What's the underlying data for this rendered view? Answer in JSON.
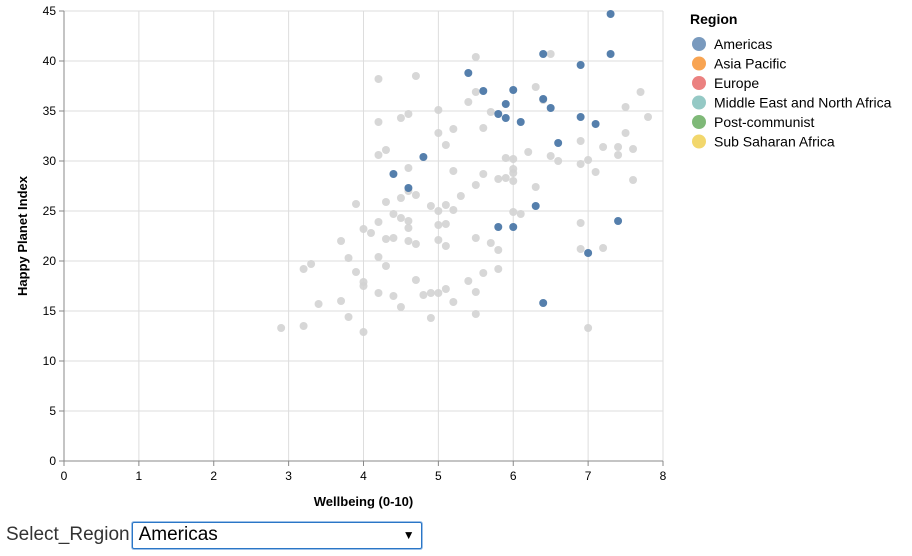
{
  "chart_data": {
    "type": "scatter",
    "title": "",
    "xlabel": "Wellbeing (0-10)",
    "ylabel": "Happy Planet Index",
    "xlim": [
      0,
      8
    ],
    "ylim": [
      0,
      45
    ],
    "xticks": [
      0,
      1,
      2,
      3,
      4,
      5,
      6,
      7,
      8
    ],
    "yticks": [
      0,
      5,
      10,
      15,
      20,
      25,
      30,
      35,
      40,
      45
    ],
    "grid": true,
    "legend_position": "right",
    "legend": {
      "title": "Region",
      "entries": [
        {
          "label": "Americas",
          "color": "#4c78a8"
        },
        {
          "label": "Asia Pacific",
          "color": "#f58518"
        },
        {
          "label": "Europe",
          "color": "#e45756"
        },
        {
          "label": "Middle East and North Africa",
          "color": "#72b7b2"
        },
        {
          "label": "Post-communist",
          "color": "#54a24b"
        },
        {
          "label": "Sub Saharan Africa",
          "color": "#eeca3b"
        }
      ]
    },
    "inactive_color": "#d3d3d3",
    "highlighted_series": {
      "name": "Americas",
      "color": "#4c78a8",
      "points": [
        [
          7.3,
          44.7
        ],
        [
          6.4,
          40.7
        ],
        [
          7.3,
          40.7
        ],
        [
          6.9,
          39.6
        ],
        [
          5.4,
          38.8
        ],
        [
          5.6,
          37.0
        ],
        [
          6.0,
          37.1
        ],
        [
          6.4,
          36.2
        ],
        [
          5.9,
          35.7
        ],
        [
          6.5,
          35.3
        ],
        [
          5.8,
          34.7
        ],
        [
          5.9,
          34.3
        ],
        [
          6.1,
          33.9
        ],
        [
          6.9,
          34.4
        ],
        [
          7.1,
          33.7
        ],
        [
          6.6,
          31.8
        ],
        [
          4.8,
          30.4
        ],
        [
          4.4,
          28.7
        ],
        [
          4.6,
          27.3
        ],
        [
          6.3,
          25.5
        ],
        [
          7.4,
          24.0
        ],
        [
          5.8,
          23.4
        ],
        [
          6.0,
          23.4
        ],
        [
          7.0,
          20.8
        ],
        [
          6.4,
          15.8
        ]
      ]
    },
    "other_points": [
      [
        5.5,
        40.4
      ],
      [
        6.5,
        40.7
      ],
      [
        4.7,
        38.5
      ],
      [
        4.2,
        38.2
      ],
      [
        6.3,
        37.4
      ],
      [
        7.7,
        36.9
      ],
      [
        5.5,
        36.9
      ],
      [
        5.4,
        35.9
      ],
      [
        6.4,
        36.1
      ],
      [
        7.5,
        35.4
      ],
      [
        5.0,
        35.1
      ],
      [
        5.7,
        34.9
      ],
      [
        4.6,
        34.7
      ],
      [
        4.5,
        34.3
      ],
      [
        7.8,
        34.4
      ],
      [
        4.2,
        33.9
      ],
      [
        5.6,
        33.3
      ],
      [
        5.2,
        33.2
      ],
      [
        5.0,
        32.8
      ],
      [
        7.5,
        32.8
      ],
      [
        6.9,
        32.0
      ],
      [
        5.1,
        31.6
      ],
      [
        7.4,
        31.4
      ],
      [
        7.6,
        31.2
      ],
      [
        7.2,
        31.4
      ],
      [
        4.3,
        31.1
      ],
      [
        6.2,
        30.9
      ],
      [
        6.5,
        30.5
      ],
      [
        6.6,
        30.0
      ],
      [
        7.0,
        30.1
      ],
      [
        7.4,
        30.6
      ],
      [
        4.2,
        30.6
      ],
      [
        5.9,
        30.3
      ],
      [
        6.0,
        30.2
      ],
      [
        6.9,
        29.7
      ],
      [
        4.6,
        29.3
      ],
      [
        6.0,
        29.2
      ],
      [
        5.2,
        29.0
      ],
      [
        6.0,
        28.8
      ],
      [
        5.6,
        28.7
      ],
      [
        7.1,
        28.9
      ],
      [
        5.8,
        28.2
      ],
      [
        5.9,
        28.3
      ],
      [
        6.0,
        28.0
      ],
      [
        7.6,
        28.1
      ],
      [
        5.5,
        27.6
      ],
      [
        6.3,
        27.4
      ],
      [
        4.6,
        27.0
      ],
      [
        4.7,
        26.6
      ],
      [
        4.5,
        26.3
      ],
      [
        5.3,
        26.5
      ],
      [
        4.9,
        25.5
      ],
      [
        5.1,
        25.6
      ],
      [
        4.3,
        25.9
      ],
      [
        3.9,
        25.7
      ],
      [
        5.0,
        25.0
      ],
      [
        5.2,
        25.1
      ],
      [
        6.0,
        24.9
      ],
      [
        6.1,
        24.7
      ],
      [
        4.4,
        24.7
      ],
      [
        4.5,
        24.3
      ],
      [
        4.6,
        24.0
      ],
      [
        6.9,
        23.8
      ],
      [
        5.1,
        23.7
      ],
      [
        5.0,
        23.6
      ],
      [
        4.2,
        23.9
      ],
      [
        4.6,
        23.3
      ],
      [
        4.0,
        23.2
      ],
      [
        4.1,
        22.8
      ],
      [
        5.5,
        22.3
      ],
      [
        3.7,
        22.0
      ],
      [
        4.3,
        22.2
      ],
      [
        4.4,
        22.3
      ],
      [
        4.6,
        22.0
      ],
      [
        4.7,
        21.7
      ],
      [
        5.0,
        22.1
      ],
      [
        5.1,
        21.5
      ],
      [
        5.7,
        21.8
      ],
      [
        5.8,
        21.1
      ],
      [
        7.2,
        21.3
      ],
      [
        6.9,
        21.2
      ],
      [
        4.2,
        20.4
      ],
      [
        3.8,
        20.3
      ],
      [
        3.3,
        19.7
      ],
      [
        3.2,
        19.2
      ],
      [
        4.3,
        19.5
      ],
      [
        5.6,
        18.8
      ],
      [
        5.8,
        19.2
      ],
      [
        3.9,
        18.9
      ],
      [
        4.0,
        17.9
      ],
      [
        4.7,
        18.1
      ],
      [
        5.4,
        18.0
      ],
      [
        4.0,
        17.5
      ],
      [
        5.1,
        17.2
      ],
      [
        4.9,
        16.8
      ],
      [
        5.0,
        16.8
      ],
      [
        4.8,
        16.6
      ],
      [
        4.2,
        16.8
      ],
      [
        4.4,
        16.5
      ],
      [
        5.5,
        16.9
      ],
      [
        3.7,
        16.0
      ],
      [
        3.4,
        15.7
      ],
      [
        4.5,
        15.4
      ],
      [
        5.2,
        15.9
      ],
      [
        5.5,
        14.7
      ],
      [
        3.8,
        14.4
      ],
      [
        4.9,
        14.3
      ],
      [
        3.2,
        13.5
      ],
      [
        2.9,
        13.3
      ],
      [
        4.0,
        12.9
      ],
      [
        7.0,
        13.3
      ]
    ]
  },
  "controls": {
    "select_label": "Select_Region",
    "select_value": "Americas",
    "select_arrow": "▼"
  }
}
